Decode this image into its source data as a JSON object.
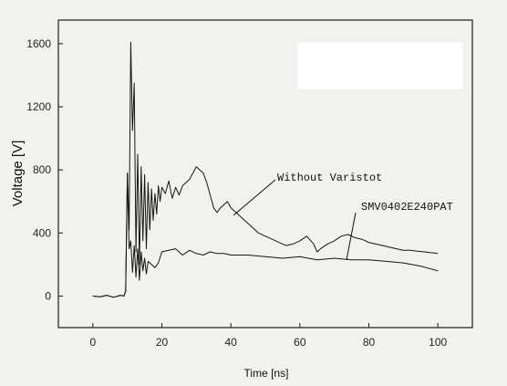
{
  "chart_data": {
    "type": "line",
    "xlabel": "Time [ns]",
    "ylabel": "Voltage [V]",
    "xlim": [
      -10,
      110
    ],
    "ylim": [
      -200,
      1750
    ],
    "xticks": [
      0,
      20,
      40,
      60,
      80,
      100
    ],
    "yticks": [
      0,
      400,
      800,
      1200,
      1600
    ],
    "grid": false,
    "annotations": [
      {
        "text": "Without Varistot",
        "series": 0
      },
      {
        "text": "SMV0402E240PAT",
        "series": 1
      }
    ],
    "series": [
      {
        "name": "Without Varistot",
        "x": [
          0,
          2,
          4,
          6,
          8,
          9,
          9.5,
          10,
          10.5,
          11,
          11.5,
          12,
          12.5,
          13,
          13.5,
          14,
          14.5,
          15,
          15.5,
          16,
          16.5,
          17,
          17.5,
          18,
          18.5,
          19,
          19.5,
          20,
          21,
          22,
          23,
          24,
          25,
          26,
          27,
          28,
          29,
          30,
          31,
          32,
          33,
          34,
          35,
          36,
          37,
          38,
          39,
          40,
          42,
          44,
          46,
          48,
          50,
          52,
          54,
          56,
          58,
          60,
          62,
          64,
          65,
          66,
          68,
          70,
          72,
          74,
          76,
          78,
          80,
          82,
          84,
          86,
          88,
          90,
          92,
          94,
          96,
          98,
          100
        ],
        "y": [
          0,
          -5,
          5,
          -8,
          5,
          0,
          30,
          780,
          420,
          1610,
          1050,
          1350,
          280,
          900,
          200,
          820,
          350,
          770,
          300,
          720,
          420,
          680,
          480,
          650,
          520,
          700,
          600,
          690,
          650,
          730,
          620,
          690,
          640,
          700,
          720,
          740,
          780,
          820,
          800,
          780,
          720,
          640,
          560,
          530,
          560,
          580,
          600,
          560,
          520,
          480,
          440,
          400,
          380,
          360,
          340,
          320,
          330,
          350,
          380,
          330,
          280,
          300,
          330,
          350,
          380,
          390,
          370,
          360,
          340,
          330,
          320,
          310,
          300,
          290,
          290,
          285,
          280,
          275,
          270
        ]
      },
      {
        "name": "SMV0402E240PAT",
        "x": [
          0,
          2,
          4,
          6,
          8,
          9,
          9.5,
          10,
          10.5,
          11,
          11.5,
          12,
          12.5,
          13,
          13.5,
          14,
          14.5,
          15,
          15.5,
          16,
          17,
          18,
          19,
          20,
          22,
          24,
          26,
          28,
          30,
          32,
          34,
          36,
          38,
          40,
          45,
          50,
          55,
          60,
          65,
          70,
          75,
          80,
          85,
          90,
          95,
          100
        ],
        "y": [
          0,
          -5,
          5,
          -8,
          5,
          0,
          30,
          780,
          300,
          350,
          150,
          320,
          120,
          300,
          100,
          280,
          160,
          240,
          140,
          220,
          200,
          180,
          210,
          280,
          290,
          300,
          260,
          290,
          270,
          260,
          280,
          270,
          270,
          260,
          260,
          250,
          240,
          250,
          230,
          240,
          230,
          230,
          220,
          210,
          190,
          160
        ]
      }
    ]
  }
}
